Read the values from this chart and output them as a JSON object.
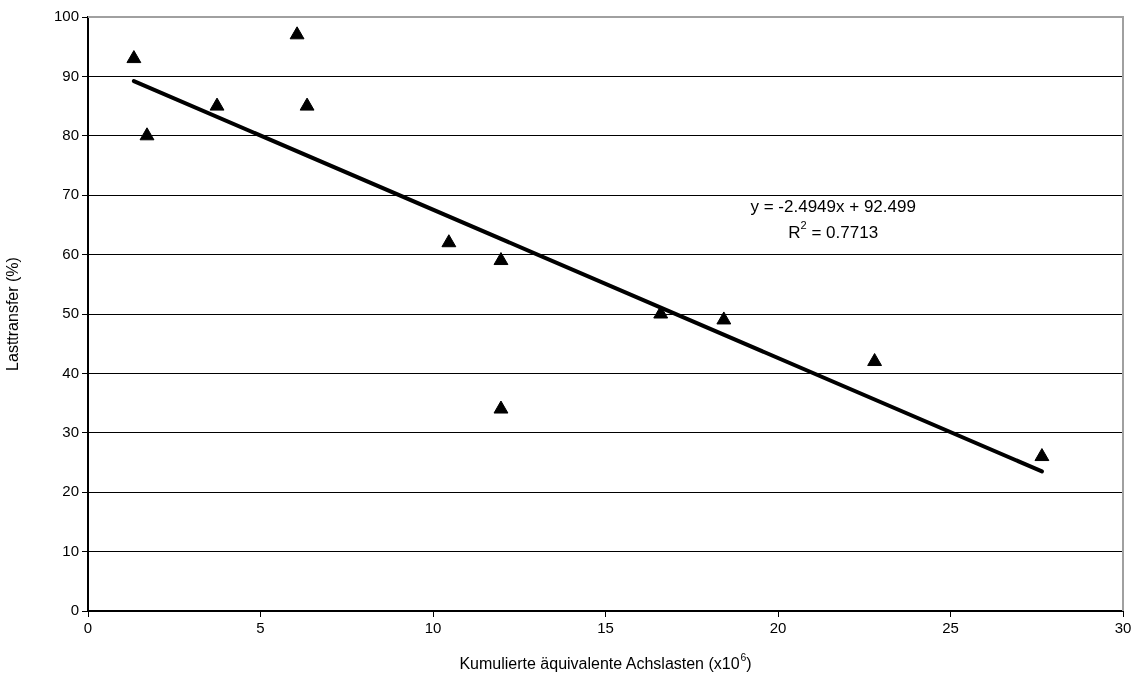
{
  "chart_data": {
    "type": "scatter",
    "xlabel": "Kumulierte äquivalente Achslasten (x10$^{6}$)",
    "ylabel": "Lasttransfer (%)",
    "xlim": [
      0,
      30
    ],
    "xticks": [
      0,
      5,
      10,
      15,
      20,
      25,
      30
    ],
    "ylim": [
      0,
      100
    ],
    "yticks": [
      0,
      10,
      20,
      30,
      40,
      50,
      60,
      70,
      80,
      90,
      100
    ],
    "grid": "y",
    "legend": false,
    "marker": "triangle",
    "series": [
      {
        "type": "scatter",
        "color": "#000000",
        "x": [
          1.33,
          1.71,
          3.74,
          6.06,
          6.35,
          10.46,
          11.97,
          11.97,
          16.6,
          18.43,
          22.8,
          27.65
        ],
        "values": [
          93,
          80,
          85,
          97,
          85,
          62,
          59,
          34,
          50,
          49,
          42,
          26
        ]
      },
      {
        "type": "line",
        "color": "#000000",
        "marker": "none",
        "x": [
          1.33,
          27.65
        ],
        "values": [
          89.2,
          23.5
        ]
      }
    ],
    "annotations": [
      "y = -2.4949x + 92.499",
      "R$^{2}$ = 0.7713"
    ]
  }
}
